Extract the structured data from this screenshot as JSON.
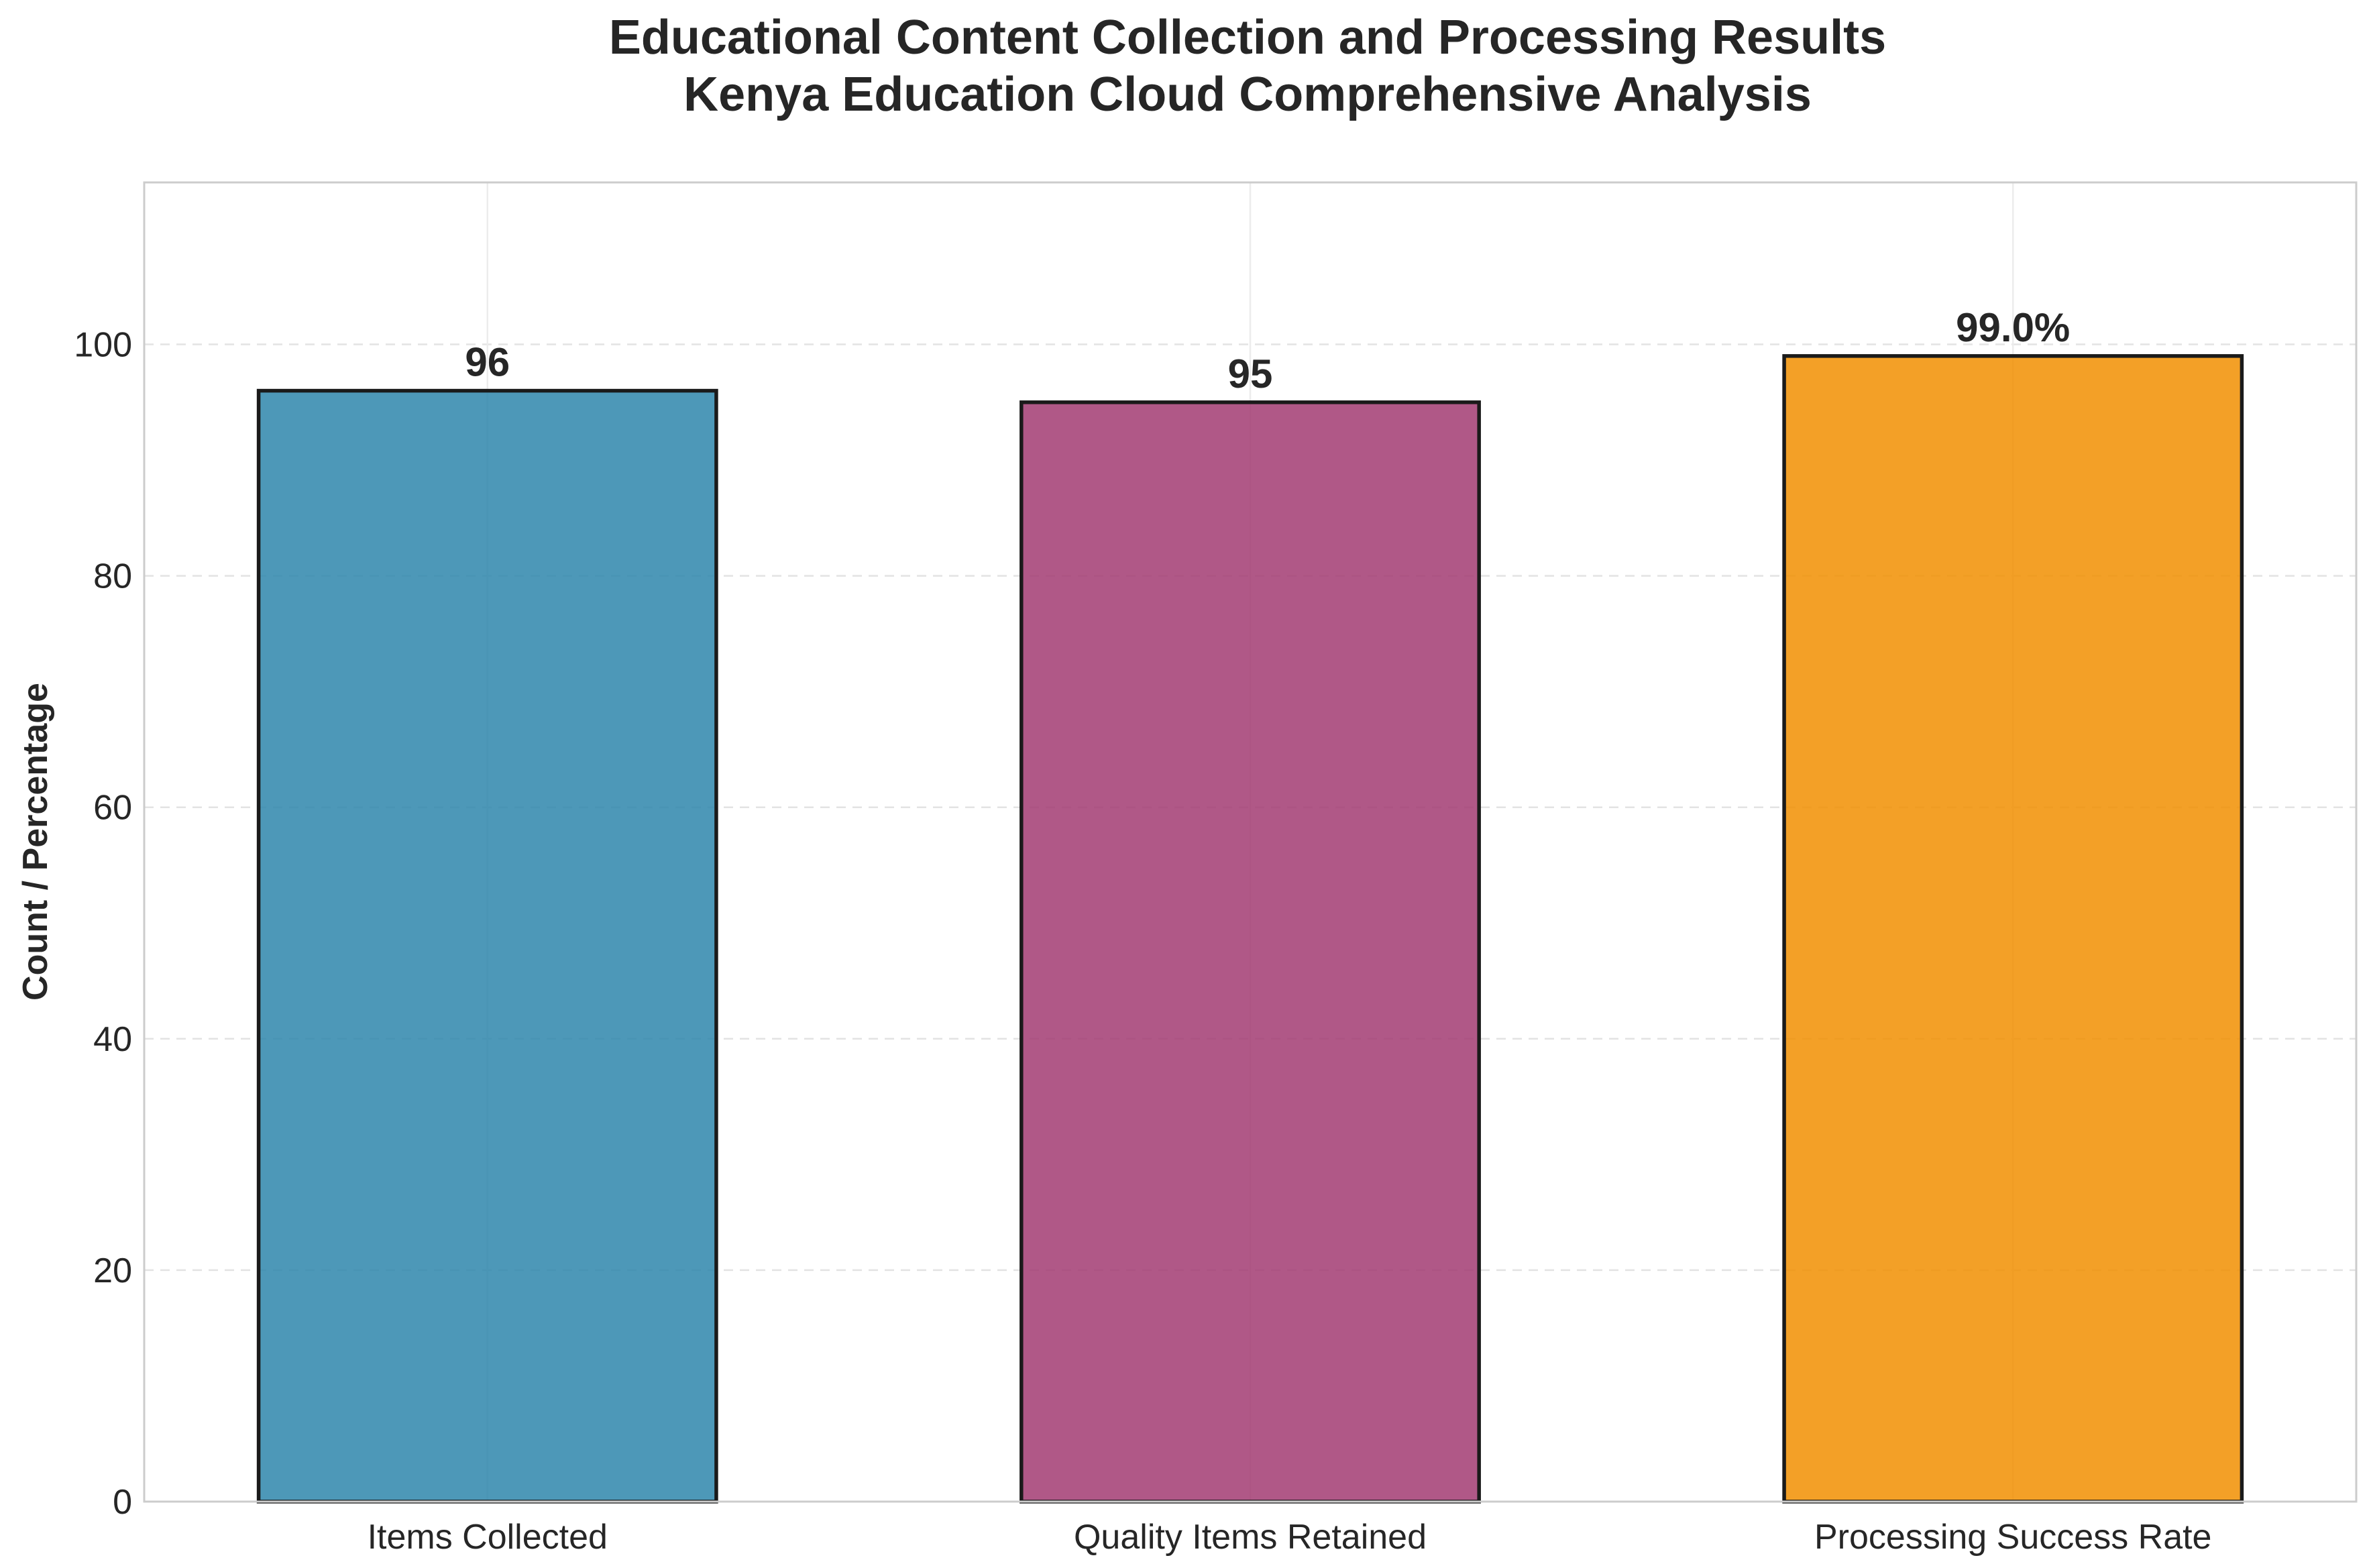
{
  "chart_data": {
    "type": "bar",
    "title_lines": [
      "Educational Content Collection and Processing Results",
      "Kenya Education Cloud Comprehensive Analysis"
    ],
    "xlabel": "",
    "ylabel": "Count / Percentage",
    "categories": [
      "Items Collected",
      "Quality Items Retained",
      "Processing Success Rate"
    ],
    "values": [
      96,
      95,
      99.0
    ],
    "value_labels": [
      "96",
      "95",
      "99.0%"
    ],
    "colors": [
      "#2e86ab",
      "#a23b72",
      "#f18f01"
    ],
    "ylim": [
      0,
      114
    ],
    "yticks": [
      0,
      20,
      40,
      60,
      80,
      100
    ],
    "grid": true,
    "legend": "none"
  }
}
